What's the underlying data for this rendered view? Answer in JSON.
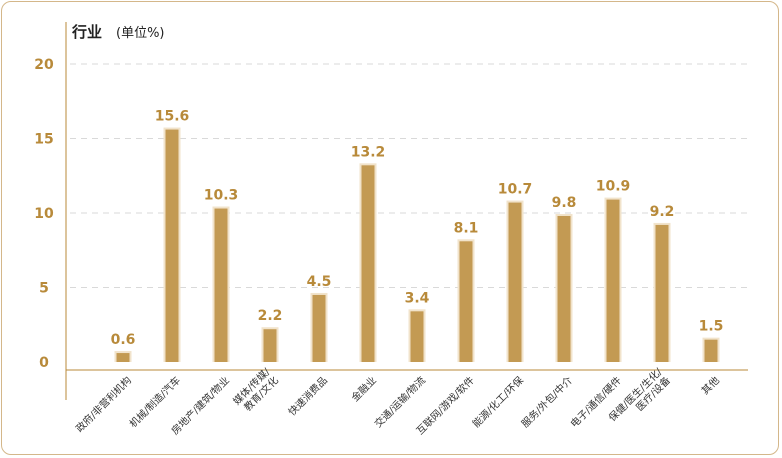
{
  "chart_data": {
    "type": "bar",
    "title": "行业",
    "unit": "(单位%)",
    "y_ticks": [
      "0",
      "5",
      "10",
      "15",
      "20"
    ],
    "ylim": [
      0,
      20
    ],
    "grid": "horizontal-dashed",
    "categories": [
      [
        "政府/非营利机构"
      ],
      [
        "机械/制造/汽车"
      ],
      [
        "房地产/建筑/物业"
      ],
      [
        "媒体/传媒/",
        "教育/文化"
      ],
      [
        "快速消费品"
      ],
      [
        "金融业"
      ],
      [
        "交通/运输/物流"
      ],
      [
        "互联网/游戏/软件"
      ],
      [
        "能源/化工/环保"
      ],
      [
        "服务/外包/中介"
      ],
      [
        "电子/通信/硬件"
      ],
      [
        "保健/医生/生化/",
        "医疗/设备"
      ],
      [
        "其他"
      ]
    ],
    "values": [
      0.6,
      15.6,
      10.3,
      2.2,
      4.5,
      13.2,
      3.4,
      8.1,
      10.7,
      9.8,
      10.9,
      9.2,
      1.5
    ],
    "value_labels": [
      "0.6",
      "15.6",
      "10.3",
      "2.2",
      "4.5",
      "13.2",
      "3.4",
      "8.1",
      "10.7",
      "9.8",
      "10.9",
      "9.2",
      "1.5"
    ],
    "colors": {
      "bar": "#c39a53",
      "bar_glow": "#f1e3cb",
      "label": "#b88a3a",
      "grid": "#d9d9d9",
      "axis": "#b88a3a",
      "border": "#d4b78a"
    }
  }
}
